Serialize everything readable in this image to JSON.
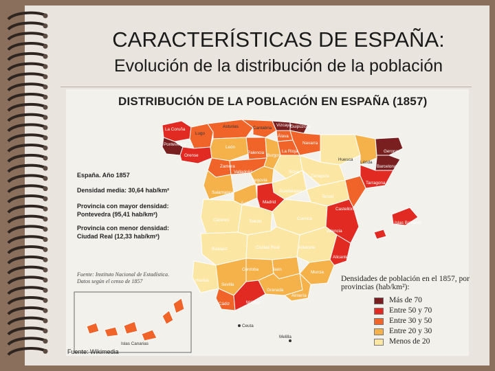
{
  "slide": {
    "title": "CARACTERÍSTICAS DE ESPAÑA:",
    "subtitle": "Evolución de la distribución de la población",
    "footer": "Fuente: Wikimedia"
  },
  "map": {
    "title": "DISTRIBUCIÓN DE LA POBLACIÓN EN ESPAÑA (1857)",
    "info": {
      "year": "España. Año 1857",
      "density": "Densidad media: 30,64 hab/km²",
      "max_label": "Provincia con mayor densidad:",
      "max_value": "Pontevedra (95,41 hab/km²)",
      "min_label": "Provincia con menor densidad:",
      "min_value": "Ciudad Real (12,33 hab/km²)"
    },
    "source_line1": "Fuente: Instituto Nacional de Estadística.",
    "source_line2": "Datos según el censo de 1857",
    "legend": {
      "title": "Densidades de población en el 1857, por provincias (hab/km²):",
      "items": [
        {
          "label": "Más de 70",
          "color": "#7a1f1f"
        },
        {
          "label": "Entre 50 y 70",
          "color": "#e12a22"
        },
        {
          "label": "Entre 30 y 50",
          "color": "#f0642a"
        },
        {
          "label": "Entre 20 y 30",
          "color": "#f6b24a"
        },
        {
          "label": "Menos de 20",
          "color": "#fbe7a3"
        }
      ]
    },
    "provinces": {
      "la_coruna": "La Coruña",
      "lugo": "Lugo",
      "pontevedra": "Pontevedra",
      "orense": "Orense",
      "asturias": "Asturias",
      "cantabria": "Cantabria",
      "vizcaya": "Vizcaya",
      "guipuzcoa": "Guipúzcoa",
      "alava": "Álava",
      "navarra": "Navarra",
      "leon": "León",
      "palencia": "Palencia",
      "burgos": "Burgos",
      "la_rioja": "La Rioja",
      "huesca": "Huesca",
      "lerida": "Lérida",
      "gerona": "Gerona",
      "barcelona": "Barcelona",
      "zamora": "Zamora",
      "valladolid": "Valladolid",
      "soria": "Soria",
      "zaragoza": "Zaragoza",
      "tarragona": "Tarragona",
      "segovia": "Segovia",
      "salamanca": "Salamanca",
      "guadalajara": "Guadalajara",
      "teruel": "Teruel",
      "avila": "Ávila",
      "madrid": "Madrid",
      "castellon": "Castellón",
      "caceres": "Cáceres",
      "toledo": "Toledo",
      "cuenca": "Cuenca",
      "valencia": "Valencia",
      "baleares": "Islas Baleares",
      "badajoz": "Badajoz",
      "ciudad_real": "Ciudad Real",
      "albacete": "Albacete",
      "alicante": "Alicante",
      "cordoba": "Córdoba",
      "jaen": "Jaén",
      "murcia": "Murcia",
      "huelva": "Huelva",
      "sevilla": "Sevilla",
      "granada": "Granada",
      "almeria": "Almería",
      "cadiz": "Cádiz",
      "malaga": "Málaga",
      "canarias": "Islas Canarias",
      "ceuta": "Ceuta",
      "melilla": "Melilla"
    }
  }
}
